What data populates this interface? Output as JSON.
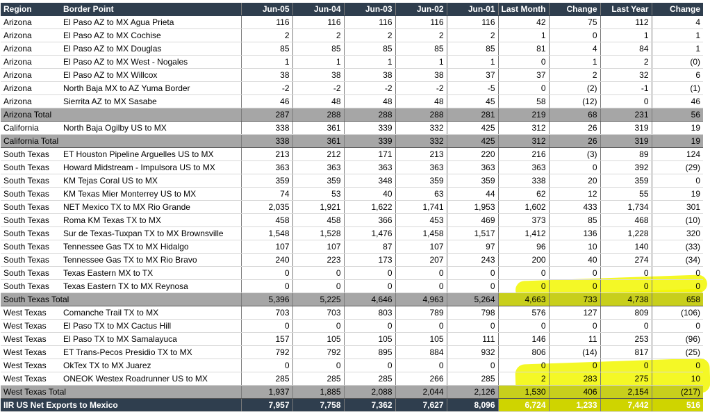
{
  "header": [
    "Region",
    "Border Point",
    "Jun-05",
    "Jun-04",
    "Jun-03",
    "Jun-02",
    "Jun-01",
    "Last Month",
    "Change",
    "Last Year",
    "Change"
  ],
  "rows": [
    {
      "type": "data",
      "cells": [
        "Arizona",
        "El Paso AZ to MX Agua Prieta",
        "116",
        "116",
        "116",
        "116",
        "116",
        "42",
        "75",
        "112",
        "4"
      ]
    },
    {
      "type": "data",
      "cells": [
        "Arizona",
        "El Paso AZ to MX Cochise",
        "2",
        "2",
        "2",
        "2",
        "2",
        "1",
        "0",
        "1",
        "1"
      ]
    },
    {
      "type": "data",
      "cells": [
        "Arizona",
        "El Paso AZ to MX Douglas",
        "85",
        "85",
        "85",
        "85",
        "85",
        "81",
        "4",
        "84",
        "1"
      ]
    },
    {
      "type": "data",
      "cells": [
        "Arizona",
        "El Paso AZ to MX West - Nogales",
        "1",
        "1",
        "1",
        "1",
        "1",
        "0",
        "1",
        "2",
        "(0)"
      ]
    },
    {
      "type": "data",
      "cells": [
        "Arizona",
        "El Paso AZ to MX Willcox",
        "38",
        "38",
        "38",
        "38",
        "37",
        "37",
        "2",
        "32",
        "6"
      ]
    },
    {
      "type": "data",
      "cells": [
        "Arizona",
        "North Baja MX to AZ Yuma Border",
        "-2",
        "-2",
        "-2",
        "-2",
        "-5",
        "0",
        "(2)",
        "-1",
        "(1)"
      ]
    },
    {
      "type": "data",
      "cells": [
        "Arizona",
        "Sierrita AZ to MX Sasabe",
        "46",
        "48",
        "48",
        "48",
        "45",
        "58",
        "(12)",
        "0",
        "46"
      ]
    },
    {
      "type": "total",
      "cells": [
        "Arizona Total",
        "",
        "287",
        "288",
        "288",
        "288",
        "281",
        "219",
        "68",
        "231",
        "56"
      ]
    },
    {
      "type": "data",
      "cells": [
        "California",
        "North Baja Ogilby US to MX",
        "338",
        "361",
        "339",
        "332",
        "425",
        "312",
        "26",
        "319",
        "19"
      ]
    },
    {
      "type": "total",
      "cells": [
        "California Total",
        "",
        "338",
        "361",
        "339",
        "332",
        "425",
        "312",
        "26",
        "319",
        "19"
      ]
    },
    {
      "type": "data",
      "cells": [
        "South Texas",
        "ET Houston Pipeline Arguelles US to MX",
        "213",
        "212",
        "171",
        "213",
        "220",
        "216",
        "(3)",
        "89",
        "124"
      ]
    },
    {
      "type": "data",
      "cells": [
        "South Texas",
        "Howard Midstream - Impulsora US to MX",
        "363",
        "363",
        "363",
        "363",
        "363",
        "363",
        "0",
        "392",
        "(29)"
      ]
    },
    {
      "type": "data",
      "cells": [
        "South Texas",
        "KM Tejas Coral US to MX",
        "359",
        "359",
        "348",
        "359",
        "359",
        "338",
        "20",
        "359",
        "0"
      ]
    },
    {
      "type": "data",
      "cells": [
        "South Texas",
        "KM Texas Mier Monterrey US to MX",
        "74",
        "53",
        "40",
        "63",
        "44",
        "62",
        "12",
        "55",
        "19"
      ]
    },
    {
      "type": "data",
      "cells": [
        "South Texas",
        "NET Mexico TX to MX Rio Grande",
        "2,035",
        "1,921",
        "1,622",
        "1,741",
        "1,953",
        "1,602",
        "433",
        "1,734",
        "301"
      ]
    },
    {
      "type": "data",
      "cells": [
        "South Texas",
        "Roma KM Texas TX to MX",
        "458",
        "458",
        "366",
        "453",
        "469",
        "373",
        "85",
        "468",
        "(10)"
      ]
    },
    {
      "type": "data",
      "cells": [
        "South Texas",
        "Sur de Texas-Tuxpan TX to MX Brownsville",
        "1,548",
        "1,528",
        "1,476",
        "1,458",
        "1,517",
        "1,412",
        "136",
        "1,228",
        "320"
      ]
    },
    {
      "type": "data",
      "cells": [
        "South Texas",
        "Tennessee Gas TX to MX Hidalgo",
        "107",
        "107",
        "87",
        "107",
        "97",
        "96",
        "10",
        "140",
        "(33)"
      ]
    },
    {
      "type": "data",
      "cells": [
        "South Texas",
        "Tennessee Gas TX to MX Rio Bravo",
        "240",
        "223",
        "173",
        "207",
        "243",
        "200",
        "40",
        "274",
        "(34)"
      ]
    },
    {
      "type": "data",
      "cells": [
        "South Texas",
        "Texas Eastern MX to TX",
        "0",
        "0",
        "0",
        "0",
        "0",
        "0",
        "0",
        "0",
        "0"
      ]
    },
    {
      "type": "data",
      "cells": [
        "South Texas",
        "Texas Eastern TX to MX Reynosa",
        "0",
        "0",
        "0",
        "0",
        "0",
        "0",
        "0",
        "0",
        "0"
      ]
    },
    {
      "type": "total",
      "cells": [
        "South Texas Total",
        "",
        "5,396",
        "5,225",
        "4,646",
        "4,963",
        "5,264",
        "4,663",
        "733",
        "4,738",
        "658"
      ]
    },
    {
      "type": "data",
      "cells": [
        "West Texas",
        "Comanche Trail TX to MX",
        "703",
        "703",
        "803",
        "789",
        "798",
        "576",
        "127",
        "809",
        "(106)"
      ]
    },
    {
      "type": "data",
      "cells": [
        "West Texas",
        "El Paso TX to MX Cactus Hill",
        "0",
        "0",
        "0",
        "0",
        "0",
        "0",
        "0",
        "0",
        "0"
      ]
    },
    {
      "type": "data",
      "cells": [
        "West Texas",
        "El Paso TX to MX Samalayuca",
        "157",
        "105",
        "105",
        "105",
        "111",
        "146",
        "11",
        "253",
        "(96)"
      ]
    },
    {
      "type": "data",
      "cells": [
        "West Texas",
        "ET Trans-Pecos Presidio TX to MX",
        "792",
        "792",
        "895",
        "884",
        "932",
        "806",
        "(14)",
        "817",
        "(25)"
      ]
    },
    {
      "type": "data",
      "cells": [
        "West Texas",
        "OkTex TX to MX Juarez",
        "0",
        "0",
        "0",
        "0",
        "0",
        "0",
        "0",
        "0",
        "0"
      ]
    },
    {
      "type": "data",
      "cells": [
        "West Texas",
        "ONEOK Westex Roadrunner US to MX",
        "285",
        "285",
        "285",
        "266",
        "285",
        "2",
        "283",
        "275",
        "10"
      ]
    },
    {
      "type": "total",
      "cells": [
        "West Texas Total",
        "",
        "1,937",
        "1,885",
        "2,088",
        "2,044",
        "2,126",
        "1,530",
        "406",
        "2,154",
        "(217)"
      ]
    },
    {
      "type": "grand",
      "cells": [
        "IIR US Net Exports to Mexico",
        "",
        "7,957",
        "7,758",
        "7,362",
        "7,627",
        "8,096",
        "6,724",
        "1,233",
        "7,442",
        "516"
      ]
    }
  ],
  "colors": {
    "header_bg": "#2f3e4e",
    "total_bg": "#a6a6a6",
    "highlight": "#eaf20a"
  }
}
